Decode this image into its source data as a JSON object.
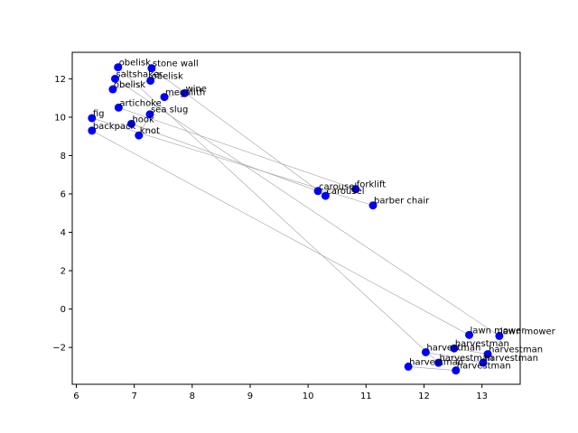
{
  "chart_data": {
    "type": "scatter",
    "title": "",
    "xlabel": "",
    "ylabel": "",
    "xlim": [
      5.93,
      13.66
    ],
    "ylim": [
      -3.92,
      13.38
    ],
    "xticks": [
      6,
      7,
      8,
      9,
      10,
      11,
      12,
      13
    ],
    "yticks": [
      -2,
      0,
      2,
      4,
      6,
      8,
      10,
      12
    ],
    "grid": false,
    "legend": "none",
    "point_color": "#0000ff",
    "line_color": "#a0a0a0",
    "points": [
      {
        "label": "obelisk",
        "x": 6.72,
        "y": 12.6
      },
      {
        "label": "stone wall",
        "x": 7.3,
        "y": 12.55
      },
      {
        "label": "saltshaker",
        "x": 6.67,
        "y": 12.0
      },
      {
        "label": "obelisk",
        "x": 7.28,
        "y": 11.9
      },
      {
        "label": "obelisk",
        "x": 6.63,
        "y": 11.45
      },
      {
        "label": "wine",
        "x": 7.87,
        "y": 11.25
      },
      {
        "label": "megalith",
        "x": 7.52,
        "y": 11.05
      },
      {
        "label": "artichoke",
        "x": 6.73,
        "y": 10.5
      },
      {
        "label": "sea slug",
        "x": 7.27,
        "y": 10.15
      },
      {
        "label": "fig",
        "x": 6.27,
        "y": 9.95
      },
      {
        "label": "hook",
        "x": 6.95,
        "y": 9.65
      },
      {
        "label": "backpack",
        "x": 6.27,
        "y": 9.3
      },
      {
        "label": "knot",
        "x": 7.08,
        "y": 9.05
      },
      {
        "label": "forklift",
        "x": 10.82,
        "y": 6.25
      },
      {
        "label": "carousel",
        "x": 10.17,
        "y": 6.15
      },
      {
        "label": "carousel",
        "x": 10.3,
        "y": 5.9
      },
      {
        "label": "barber chair",
        "x": 11.12,
        "y": 5.4
      },
      {
        "label": "lawn mower",
        "x": 12.78,
        "y": -1.35
      },
      {
        "label": "lawn mower",
        "x": 13.3,
        "y": -1.4
      },
      {
        "label": "harvestman",
        "x": 12.52,
        "y": -2.05
      },
      {
        "label": "harvestman",
        "x": 13.1,
        "y": -2.35
      },
      {
        "label": "harvestman",
        "x": 12.03,
        "y": -2.25
      },
      {
        "label": "harvestman",
        "x": 12.25,
        "y": -2.8
      },
      {
        "label": "harvestman",
        "x": 13.02,
        "y": -2.8
      },
      {
        "label": "harvestman",
        "x": 11.73,
        "y": -3.0
      },
      {
        "label": "harvestman",
        "x": 12.55,
        "y": -3.2
      }
    ],
    "edges": [
      [
        0,
        22
      ],
      [
        1,
        15
      ],
      [
        2,
        18
      ],
      [
        3,
        4
      ],
      [
        5,
        6
      ],
      [
        7,
        13
      ],
      [
        9,
        16
      ],
      [
        10,
        14
      ],
      [
        11,
        17
      ],
      [
        12,
        8
      ],
      [
        19,
        20
      ],
      [
        21,
        23
      ],
      [
        24,
        25
      ]
    ]
  }
}
